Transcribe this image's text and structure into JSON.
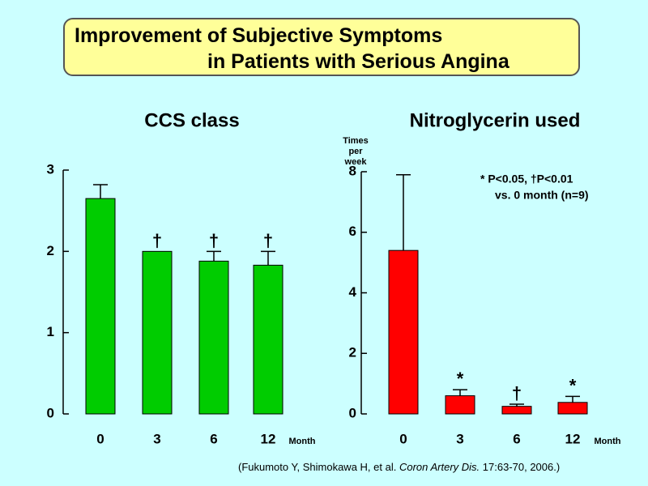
{
  "header": {
    "title_line1": "Improvement of Subjective Symptoms",
    "title_line2": "in Patients with Serious Angina"
  },
  "chart_data": [
    {
      "type": "bar",
      "title": "CCS class",
      "categories": [
        "0",
        "3",
        "6",
        "12"
      ],
      "x_unit": "Month",
      "values": [
        2.65,
        2.0,
        1.88,
        1.83
      ],
      "error_upper": [
        2.82,
        2.0,
        2.0,
        2.0
      ],
      "significance": [
        "",
        "†",
        "†",
        "†"
      ],
      "ylim": [
        0,
        3
      ],
      "yticks": [
        "0",
        "1",
        "2",
        "3"
      ],
      "bar_color": "#00cc00"
    },
    {
      "type": "bar",
      "title": "Nitroglycerin used",
      "ylabel_lines": [
        "Times",
        "per",
        "week"
      ],
      "categories": [
        "0",
        "3",
        "6",
        "12"
      ],
      "x_unit": "Month",
      "values": [
        5.4,
        0.6,
        0.25,
        0.38
      ],
      "error_upper": [
        7.9,
        0.8,
        0.32,
        0.58
      ],
      "significance": [
        "",
        "*",
        "†",
        "*"
      ],
      "ylim": [
        0,
        8
      ],
      "yticks": [
        "0",
        "2",
        "4",
        "6",
        "8"
      ],
      "bar_color": "#ff0000",
      "legend_line1": "* P<0.05, †P<0.01",
      "legend_line2": "vs. 0 month (n=9)"
    }
  ],
  "citation": {
    "prefix": "(Fukumoto Y, Shimokawa H, et al. ",
    "journal": "Coron Artery Dis.",
    "suffix": " 17:63-70, 2006.)"
  }
}
